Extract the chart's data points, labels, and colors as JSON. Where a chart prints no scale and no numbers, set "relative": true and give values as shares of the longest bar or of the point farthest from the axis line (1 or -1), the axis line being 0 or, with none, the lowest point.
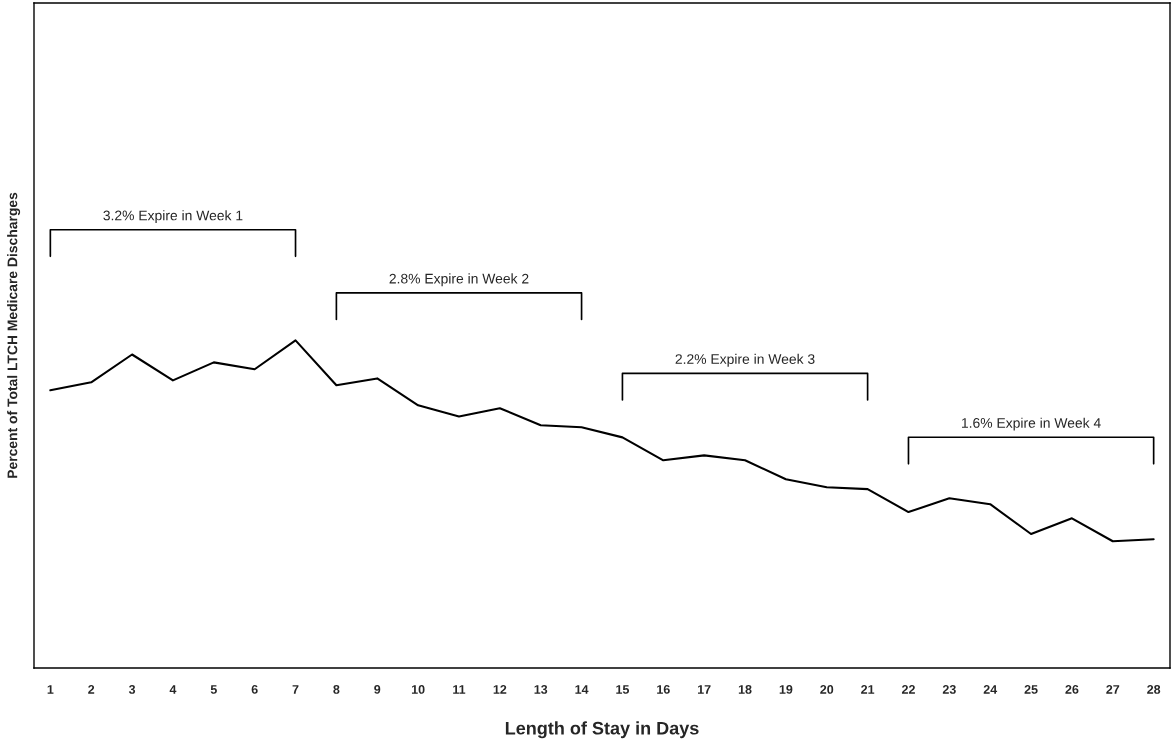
{
  "chart_data": {
    "type": "line",
    "relative": true,
    "xlabel": "Length of Stay in Days",
    "ylabel": "Percent of Total LTCH Medicare Discharges",
    "categories": [
      "1",
      "2",
      "3",
      "4",
      "5",
      "6",
      "7",
      "8",
      "9",
      "10",
      "11",
      "12",
      "13",
      "14",
      "15",
      "16",
      "17",
      "18",
      "19",
      "20",
      "21",
      "22",
      "23",
      "24",
      "25",
      "26",
      "27",
      "28"
    ],
    "series": [
      {
        "color": "#000000",
        "values": [
          0.848,
          0.872,
          0.957,
          0.878,
          0.933,
          0.912,
          1,
          0.863,
          0.884,
          0.802,
          0.768,
          0.793,
          0.741,
          0.735,
          0.704,
          0.634,
          0.649,
          0.634,
          0.576,
          0.552,
          0.546,
          0.476,
          0.518,
          0.5,
          0.409,
          0.457,
          0.387,
          0.393
        ]
      }
    ],
    "annotations": [
      "3.2% Expire in Week 1",
      "2.8% Expire in Week 2",
      "2.2% Expire in Week 3",
      "1.6% Expire in Week 4"
    ],
    "grid": false,
    "legend": false,
    "marker": "none",
    "line_style": "solid"
  }
}
